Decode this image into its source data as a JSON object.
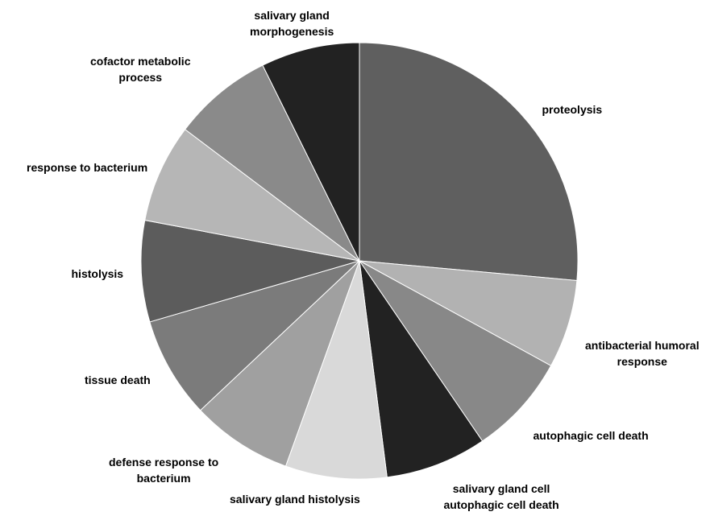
{
  "chart_data": {
    "type": "pie",
    "title": "",
    "start": "top, clockwise",
    "slices": [
      {
        "lines": [
          "proteolysis"
        ],
        "value": 27.5,
        "color": "#5f5f5f"
      },
      {
        "lines": [
          "antibacterial humoral",
          "response"
        ],
        "value": 6.8,
        "color": "#b2b2b2"
      },
      {
        "lines": [
          "autophagic cell death"
        ],
        "value": 7.8,
        "color": "#888888"
      },
      {
        "lines": [
          "salivary gland cell",
          "autophagic cell death"
        ],
        "value": 7.8,
        "color": "#222222"
      },
      {
        "lines": [
          "salivary gland histolysis"
        ],
        "value": 7.8,
        "color": "#d9d9d9"
      },
      {
        "lines": [
          "defense response to",
          "bacterium"
        ],
        "value": 7.8,
        "color": "#a0a0a0"
      },
      {
        "lines": [
          "tissue death"
        ],
        "value": 7.8,
        "color": "#7b7b7b"
      },
      {
        "lines": [
          "histolysis"
        ],
        "value": 7.8,
        "color": "#5c5c5c"
      },
      {
        "lines": [
          "response to bacterium"
        ],
        "value": 7.6,
        "color": "#b6b6b6"
      },
      {
        "lines": [
          "cofactor metabolic",
          "process"
        ],
        "value": 7.7,
        "color": "#8a8a8a"
      },
      {
        "lines": [
          "salivary gland",
          "morphogenesis"
        ],
        "value": 7.6,
        "color": "#222222"
      }
    ],
    "legend": "none",
    "grid": false
  }
}
